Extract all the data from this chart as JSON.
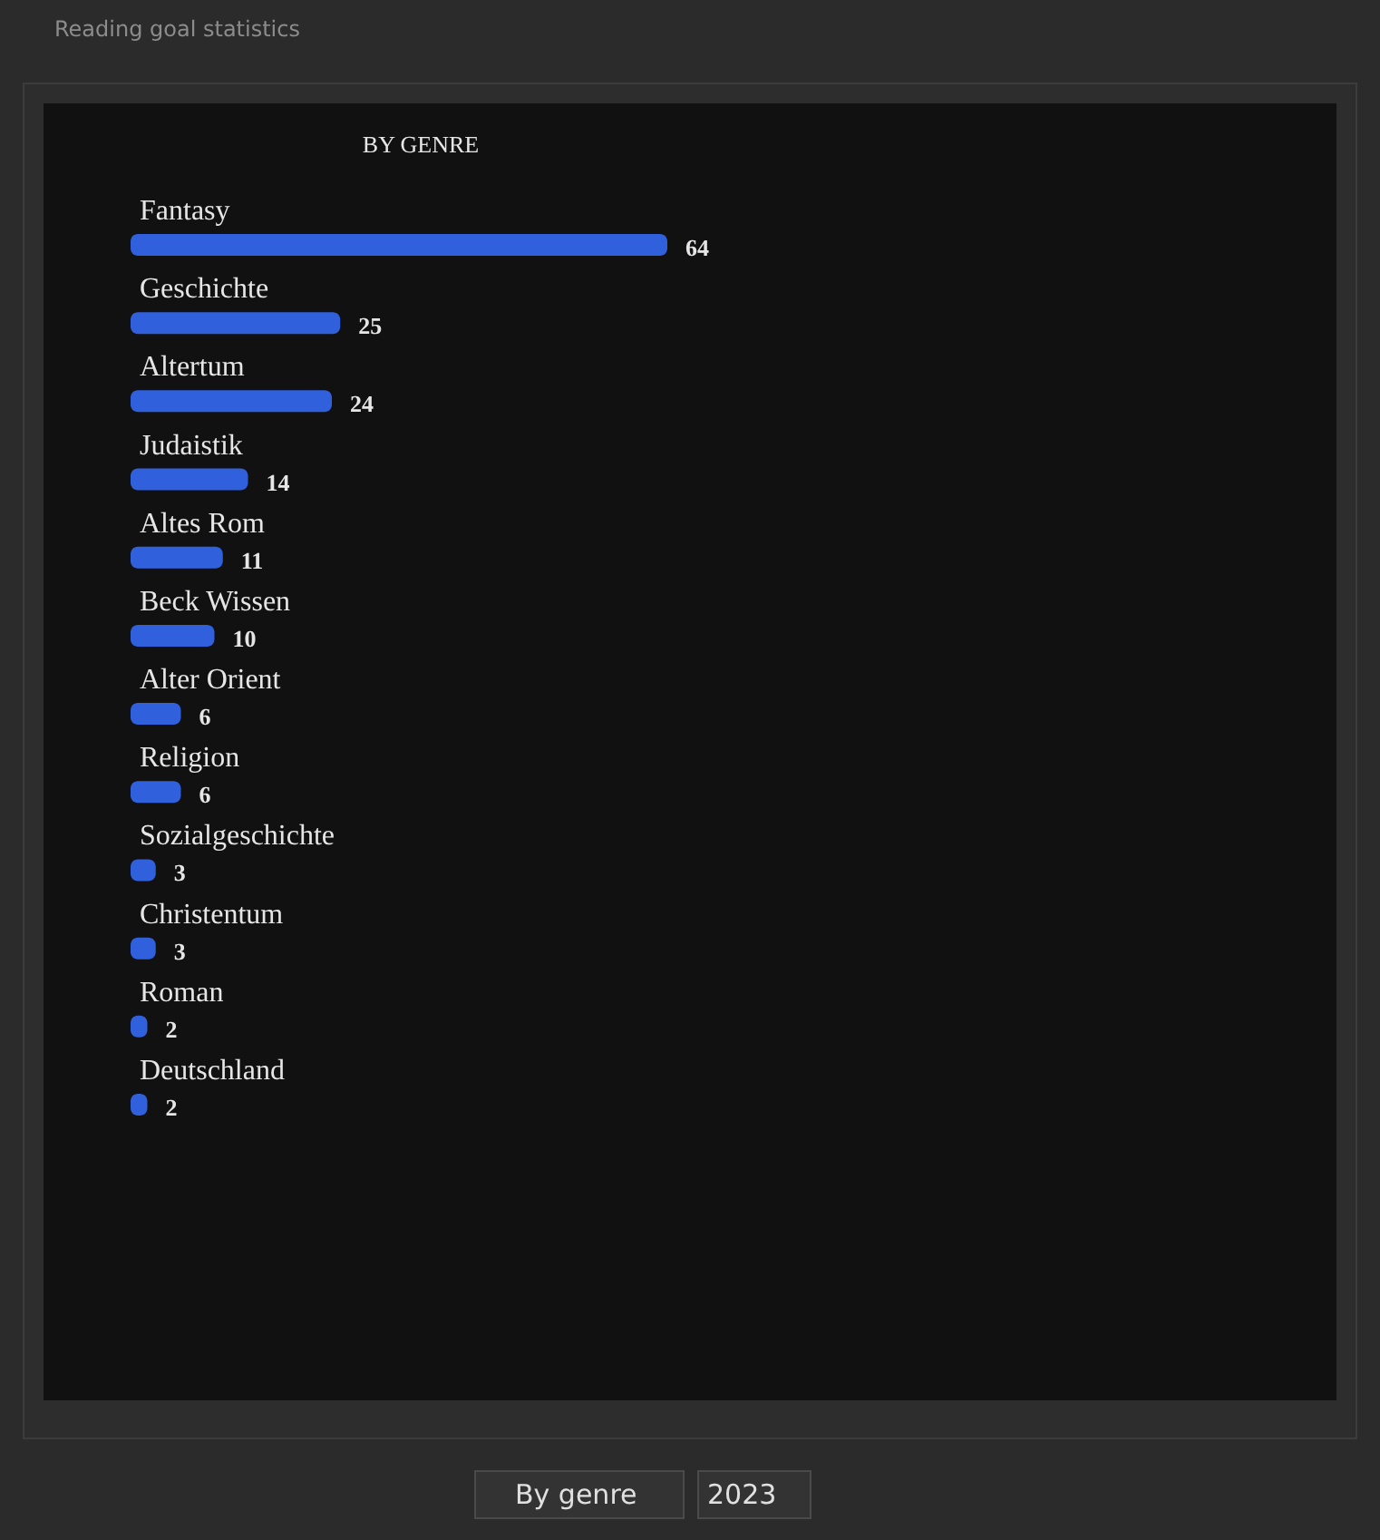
{
  "chart_data": {
    "type": "bar",
    "orientation": "horizontal",
    "title": "Reading goal statistics",
    "subtitle": "BY GENRE",
    "categories": [
      "Fantasy",
      "Geschichte",
      "Altertum",
      "Judaistik",
      "Altes Rom",
      "Beck Wissen",
      "Alter Orient",
      "Religion",
      "Sozialgeschichte",
      "Christentum",
      "Roman",
      "Deutschland"
    ],
    "values": [
      64,
      25,
      24,
      14,
      11,
      10,
      6,
      6,
      3,
      3,
      2,
      2
    ],
    "color": "#3060dc",
    "data_labels": true,
    "annotations": [
      "By genre",
      "2023"
    ]
  }
}
